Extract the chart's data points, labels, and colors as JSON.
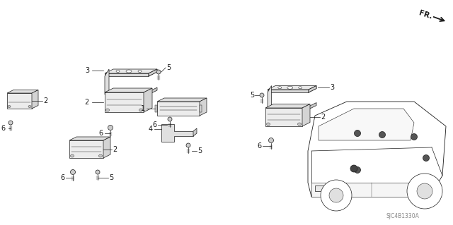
{
  "bg_color": "#ffffff",
  "line_color": "#1a1a1a",
  "fig_width": 6.4,
  "fig_height": 3.19,
  "dpi": 100,
  "fr_label": "FR.",
  "part_code": "SJC4B1330A",
  "label_fontsize": 7.0,
  "part_code_color": "#888888"
}
